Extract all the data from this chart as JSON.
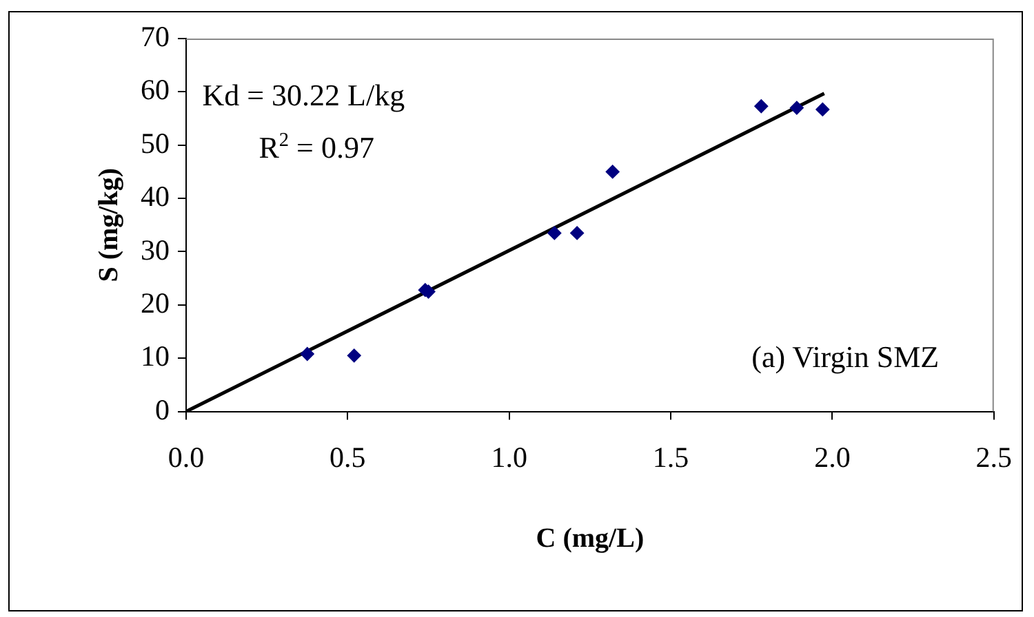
{
  "chart_data": {
    "type": "scatter",
    "xlabel": "C (mg/L)",
    "ylabel": "S (mg/kg)",
    "xlim": [
      0,
      2.5
    ],
    "xticks": [
      {
        "value": 0,
        "label": "0.0"
      },
      {
        "value": 0.5,
        "label": "0.5"
      },
      {
        "value": 1,
        "label": "1.0"
      },
      {
        "value": 1.5,
        "label": "1.5"
      },
      {
        "value": 2,
        "label": "2.0"
      },
      {
        "value": 2.5,
        "label": "2.5"
      }
    ],
    "ylim": [
      0,
      70
    ],
    "yticks": [
      0,
      10,
      20,
      30,
      40,
      50,
      60,
      70
    ],
    "grid": false,
    "legend": false,
    "series": [
      {
        "type": "scatter",
        "color": "#000080",
        "marker": "diamond",
        "x": [
          0.375,
          0.52,
          0.74,
          0.75,
          1.14,
          1.21,
          1.32,
          1.78,
          1.89,
          1.97
        ],
        "values": [
          10.8,
          10.5,
          22.8,
          22.5,
          33.5,
          33.5,
          45,
          57.3,
          57,
          56.7
        ]
      },
      {
        "type": "line",
        "color": "#000000",
        "marker": "none",
        "line_style": "solid",
        "x": [
          0,
          1.975
        ],
        "values": [
          0,
          59.7
        ]
      }
    ],
    "annotations": [
      "Kd = 30.22 L/kg",
      "R$^{2}$ = 0.97",
      "(a) Virgin SMZ"
    ]
  }
}
